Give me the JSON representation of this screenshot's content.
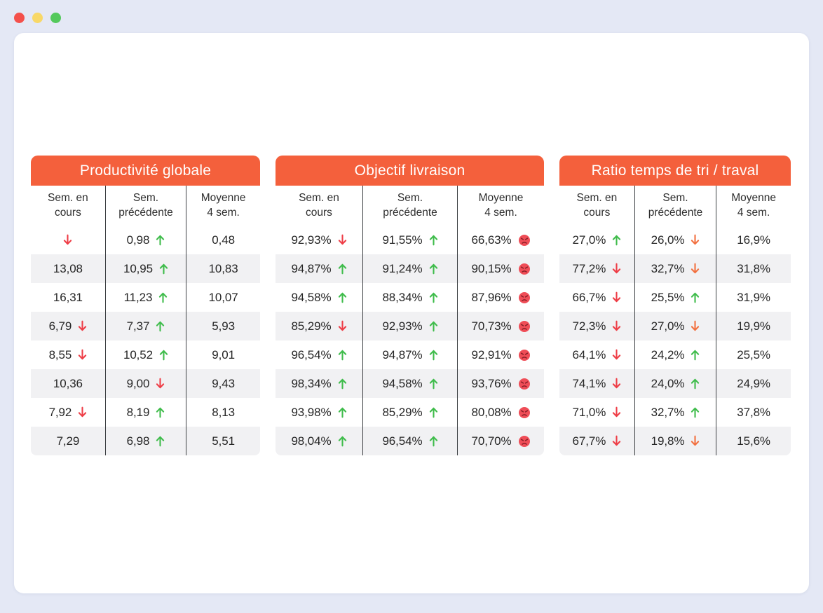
{
  "window": {
    "traffic_lights": [
      {
        "name": "close",
        "color": "#f4504b"
      },
      {
        "name": "minimize",
        "color": "#f8d867"
      },
      {
        "name": "zoom",
        "color": "#54c95c"
      }
    ]
  },
  "colors": {
    "page_background": "#e4e8f5",
    "card_background": "#ffffff",
    "header_orange": "#f4603c",
    "stripe_gray": "#f1f1f3",
    "divider_dark": "#3d4043",
    "text_dark": "#262626",
    "arrow_up_green": "#3fbc4b",
    "arrow_down_red": "#ee3d46",
    "arrow_down_orange": "#f2703f",
    "sad_face_fill": "#ef4d57",
    "sad_face_features": "#871f27"
  },
  "tables": [
    {
      "title": "Productivité globale",
      "columns": [
        "Sem. en\ncours",
        "Sem.\nprécédente",
        "Moyenne\n4 sem."
      ],
      "rows": [
        [
          {
            "value": "",
            "icon": "down"
          },
          {
            "value": "0,98",
            "icon": "up"
          },
          {
            "value": "0,48",
            "icon": null
          }
        ],
        [
          {
            "value": "13,08",
            "icon": null
          },
          {
            "value": "10,95",
            "icon": "up"
          },
          {
            "value": "10,83",
            "icon": null
          }
        ],
        [
          {
            "value": "16,31",
            "icon": null
          },
          {
            "value": "11,23",
            "icon": "up"
          },
          {
            "value": "10,07",
            "icon": null
          }
        ],
        [
          {
            "value": "6,79",
            "icon": "down"
          },
          {
            "value": "7,37",
            "icon": "up"
          },
          {
            "value": "5,93",
            "icon": null
          }
        ],
        [
          {
            "value": "8,55",
            "icon": "down"
          },
          {
            "value": "10,52",
            "icon": "up"
          },
          {
            "value": "9,01",
            "icon": null
          }
        ],
        [
          {
            "value": "10,36",
            "icon": null
          },
          {
            "value": "9,00",
            "icon": "down"
          },
          {
            "value": "9,43",
            "icon": null
          }
        ],
        [
          {
            "value": "7,92",
            "icon": "down"
          },
          {
            "value": "8,19",
            "icon": "up"
          },
          {
            "value": "8,13",
            "icon": null
          }
        ],
        [
          {
            "value": "7,29",
            "icon": null
          },
          {
            "value": "6,98",
            "icon": "up"
          },
          {
            "value": "5,51",
            "icon": null
          }
        ]
      ]
    },
    {
      "title": "Objectif livraison",
      "columns": [
        "Sem. en\ncours",
        "Sem.\nprécédente",
        "Moyenne\n4 sem."
      ],
      "rows": [
        [
          {
            "value": "92,93%",
            "icon": "down"
          },
          {
            "value": "91,55%",
            "icon": "up"
          },
          {
            "value": "66,63%",
            "icon": "sad"
          }
        ],
        [
          {
            "value": "94,87%",
            "icon": "up"
          },
          {
            "value": "91,24%",
            "icon": "up"
          },
          {
            "value": "90,15%",
            "icon": "sad"
          }
        ],
        [
          {
            "value": "94,58%",
            "icon": "up"
          },
          {
            "value": "88,34%",
            "icon": "up"
          },
          {
            "value": "87,96%",
            "icon": "sad"
          }
        ],
        [
          {
            "value": "85,29%",
            "icon": "down"
          },
          {
            "value": "92,93%",
            "icon": "up"
          },
          {
            "value": "70,73%",
            "icon": "sad"
          }
        ],
        [
          {
            "value": "96,54%",
            "icon": "up"
          },
          {
            "value": "94,87%",
            "icon": "up"
          },
          {
            "value": "92,91%",
            "icon": "sad"
          }
        ],
        [
          {
            "value": "98,34%",
            "icon": "up"
          },
          {
            "value": "94,58%",
            "icon": "up"
          },
          {
            "value": "93,76%",
            "icon": "sad"
          }
        ],
        [
          {
            "value": "93,98%",
            "icon": "up"
          },
          {
            "value": "85,29%",
            "icon": "up"
          },
          {
            "value": "80,08%",
            "icon": "sad"
          }
        ],
        [
          {
            "value": "98,04%",
            "icon": "up"
          },
          {
            "value": "96,54%",
            "icon": "up"
          },
          {
            "value": "70,70%",
            "icon": "sad"
          }
        ]
      ]
    },
    {
      "title": "Ratio temps de tri / traval",
      "columns": [
        "Sem. en\ncours",
        "Sem.\nprécédente",
        "Moyenne\n4 sem."
      ],
      "rows": [
        [
          {
            "value": "27,0%",
            "icon": "up"
          },
          {
            "value": "26,0%",
            "icon": "down-alt"
          },
          {
            "value": "16,9%",
            "icon": null
          }
        ],
        [
          {
            "value": "77,2%",
            "icon": "down"
          },
          {
            "value": "32,7%",
            "icon": "down-alt"
          },
          {
            "value": "31,8%",
            "icon": null
          }
        ],
        [
          {
            "value": "66,7%",
            "icon": "down"
          },
          {
            "value": "25,5%",
            "icon": "up"
          },
          {
            "value": "31,9%",
            "icon": null
          }
        ],
        [
          {
            "value": "72,3%",
            "icon": "down"
          },
          {
            "value": "27,0%",
            "icon": "down-alt"
          },
          {
            "value": "19,9%",
            "icon": null
          }
        ],
        [
          {
            "value": "64,1%",
            "icon": "down"
          },
          {
            "value": "24,2%",
            "icon": "up"
          },
          {
            "value": "25,5%",
            "icon": null
          }
        ],
        [
          {
            "value": "74,1%",
            "icon": "down"
          },
          {
            "value": "24,0%",
            "icon": "up"
          },
          {
            "value": "24,9%",
            "icon": null
          }
        ],
        [
          {
            "value": "71,0%",
            "icon": "down"
          },
          {
            "value": "32,7%",
            "icon": "up"
          },
          {
            "value": "37,8%",
            "icon": null
          }
        ],
        [
          {
            "value": "67,7%",
            "icon": "down"
          },
          {
            "value": "19,8%",
            "icon": "down-alt"
          },
          {
            "value": "15,6%",
            "icon": null
          }
        ]
      ]
    }
  ]
}
